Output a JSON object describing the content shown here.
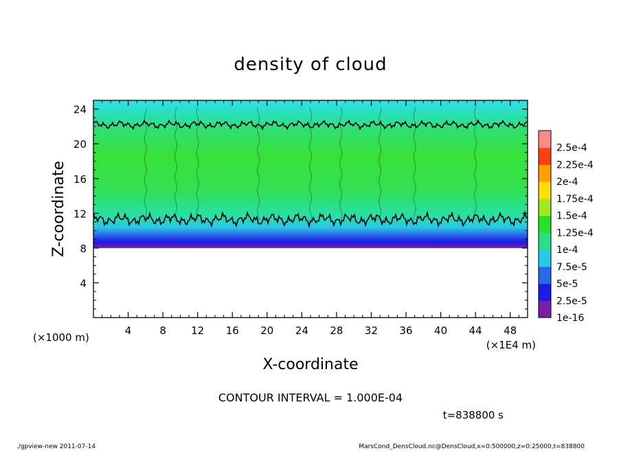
{
  "chart_data": {
    "type": "heatmap",
    "title": "density of cloud",
    "xlabel": "X-coordinate",
    "ylabel": "Z-coordinate",
    "x_unit_left": "(×1000 m)",
    "x_unit_right": "(×1E4 m)",
    "xlim": [
      0,
      50
    ],
    "ylim": [
      0,
      25
    ],
    "x_ticks": [
      4,
      8,
      12,
      16,
      20,
      24,
      28,
      32,
      36,
      40,
      44,
      48
    ],
    "y_ticks": [
      4,
      8,
      12,
      16,
      20,
      24
    ],
    "cloud_layer": {
      "z_bottom": 8,
      "z_top": 25
    },
    "contour_levels": [
      {
        "z": 22.2,
        "noise": 0.35
      },
      {
        "z": 11.3,
        "noise": 0.55
      }
    ],
    "vertical_plumes_x": [
      6,
      9.5,
      12,
      19,
      25,
      28.5,
      33,
      37,
      44
    ],
    "colorbar": {
      "labels": [
        "1e-16",
        "2.5e-5",
        "5e-5",
        "7.5e-5",
        "1e-4",
        "1.25e-4",
        "1.5e-4",
        "1.75e-4",
        "2e-4",
        "2.25e-4",
        "2.5e-4"
      ],
      "colors": [
        "#7a1fa8",
        "#1a1ae6",
        "#2a6ae8",
        "#28c8e8",
        "#28e08a",
        "#28e028",
        "#a0e820",
        "#ffe000",
        "#ffa000",
        "#ff4010",
        "#ff8888"
      ]
    }
  },
  "annotations": {
    "contour_interval": "CONTOUR INTERVAL = 1.000E-04",
    "time": "t=838800 s",
    "footer_left": "./gpview-new   2011-07-14",
    "footer_right": "MarsCond_DensCloud.nc@DensCloud,x=0:500000,z=0:25000,t=838800"
  }
}
